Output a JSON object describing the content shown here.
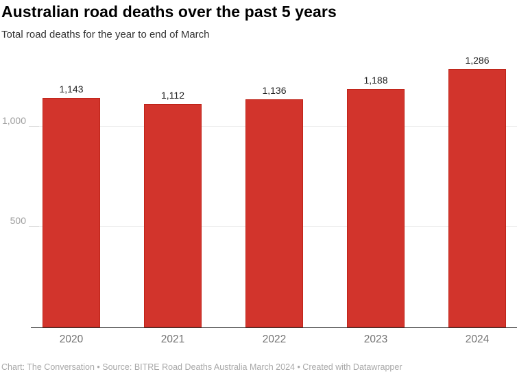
{
  "header": {
    "title": "Australian road deaths over the past 5 years",
    "subtitle": "Total road deaths for the year to end of March"
  },
  "chart_data": {
    "type": "bar",
    "title": "Australian road deaths over the past 5 years",
    "subtitle": "Total road deaths for the year to end of March",
    "categories": [
      "2020",
      "2021",
      "2022",
      "2023",
      "2024"
    ],
    "values": [
      1143,
      1112,
      1136,
      1188,
      1286
    ],
    "value_labels": [
      "1,143",
      "1,112",
      "1,136",
      "1,188",
      "1,286"
    ],
    "xlabel": "",
    "ylabel": "",
    "ylim": [
      0,
      1358
    ],
    "yticks": [
      {
        "value": 500,
        "label": "500"
      },
      {
        "value": 1000,
        "label": "1,000"
      }
    ],
    "grid": true,
    "legend": "none",
    "bar_color": "#d2342c",
    "bar_border_color": "#bf2318",
    "grid_color": "#ececec",
    "axis_line_color": "#2e2e2e"
  },
  "footer": {
    "credit": "Chart: The Conversation • Source: BITRE Road Deaths Australia March 2024 • Created with Datawrapper"
  }
}
